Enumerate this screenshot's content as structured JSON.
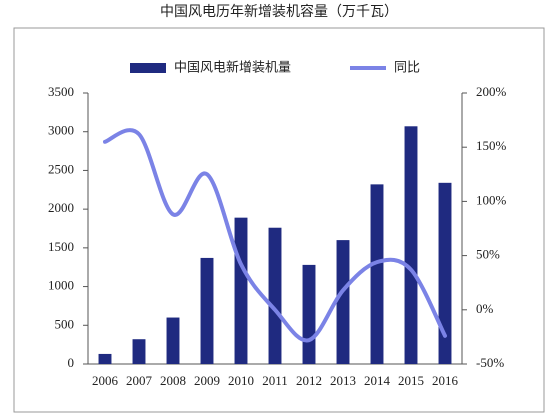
{
  "chart_data": {
    "type": "bar",
    "title": "中国风电历年新增装机容量（万千瓦）",
    "categories": [
      "2006",
      "2007",
      "2008",
      "2009",
      "2010",
      "2011",
      "2012",
      "2013",
      "2014",
      "2015",
      "2016"
    ],
    "series": [
      {
        "name": "中国风电新增装机量",
        "color": "#1f2a80",
        "type": "bar",
        "values": [
          130,
          320,
          600,
          1370,
          1890,
          1760,
          1280,
          1600,
          2320,
          3070,
          2340
        ]
      },
      {
        "name": "同比",
        "color": "#7b83e6",
        "type": "line",
        "axis": "y2",
        "values": [
          155,
          162,
          88,
          125,
          42,
          0,
          -28,
          18,
          44,
          37,
          -24
        ]
      }
    ],
    "ylim": [
      0,
      3500
    ],
    "yticks": [
      0,
      500,
      1000,
      1500,
      2000,
      2500,
      3000,
      3500
    ],
    "y2lim": [
      -50,
      200
    ],
    "y2ticks": [
      {
        "value": -50,
        "label": "-50%"
      },
      {
        "value": 0,
        "label": "0%"
      },
      {
        "value": 50,
        "label": "50%"
      },
      {
        "value": 100,
        "label": "100%"
      },
      {
        "value": 150,
        "label": "150%"
      },
      {
        "value": 200,
        "label": "200%"
      }
    ]
  }
}
